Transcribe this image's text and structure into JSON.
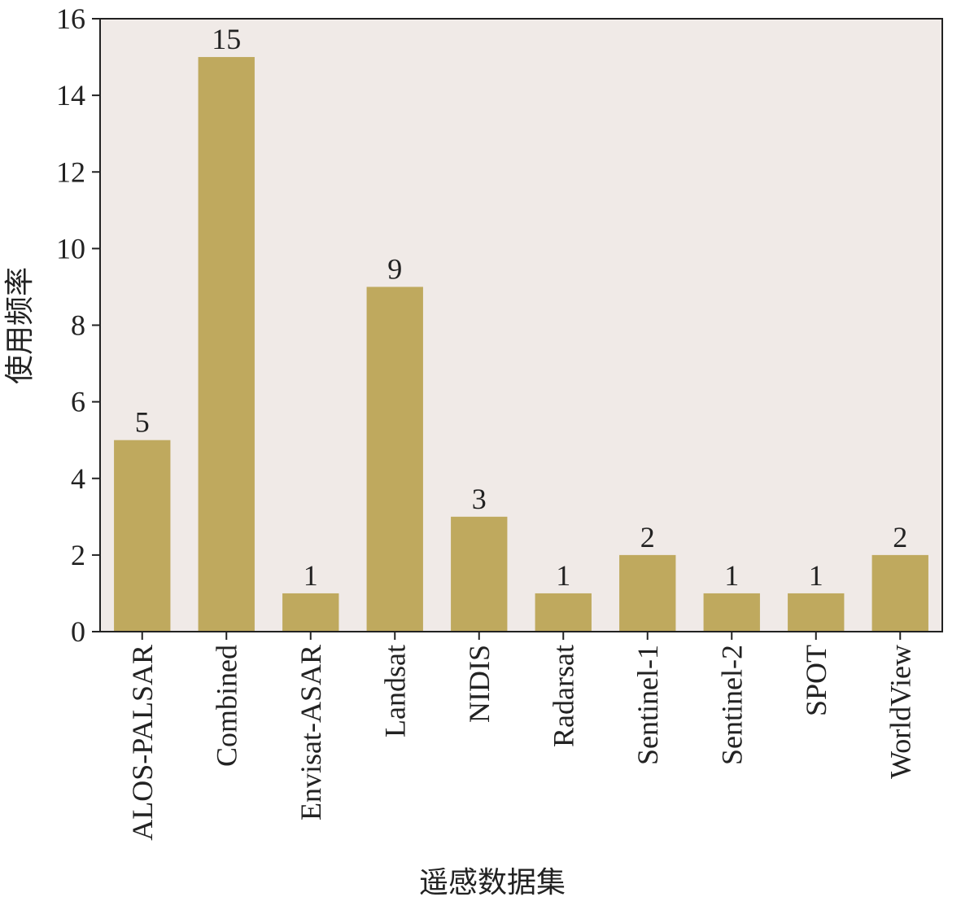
{
  "chart_data": {
    "type": "bar",
    "x_label": "遥感数据集",
    "y_label": "使用频率",
    "categories": [
      "ALOS-PALSAR",
      "Combined",
      "Envisat-ASAR",
      "Landsat",
      "NIDIS",
      "Radarsat",
      "Sentinel-1",
      "Sentinel-2",
      "SPOT",
      "WorldView"
    ],
    "values": [
      5,
      15,
      1,
      9,
      3,
      1,
      2,
      1,
      1,
      2
    ],
    "color": "#bfa95e",
    "ylim": [
      0,
      16
    ],
    "yticks": [
      0,
      2,
      4,
      6,
      8,
      10,
      12,
      14,
      16
    ],
    "grid": false
  }
}
